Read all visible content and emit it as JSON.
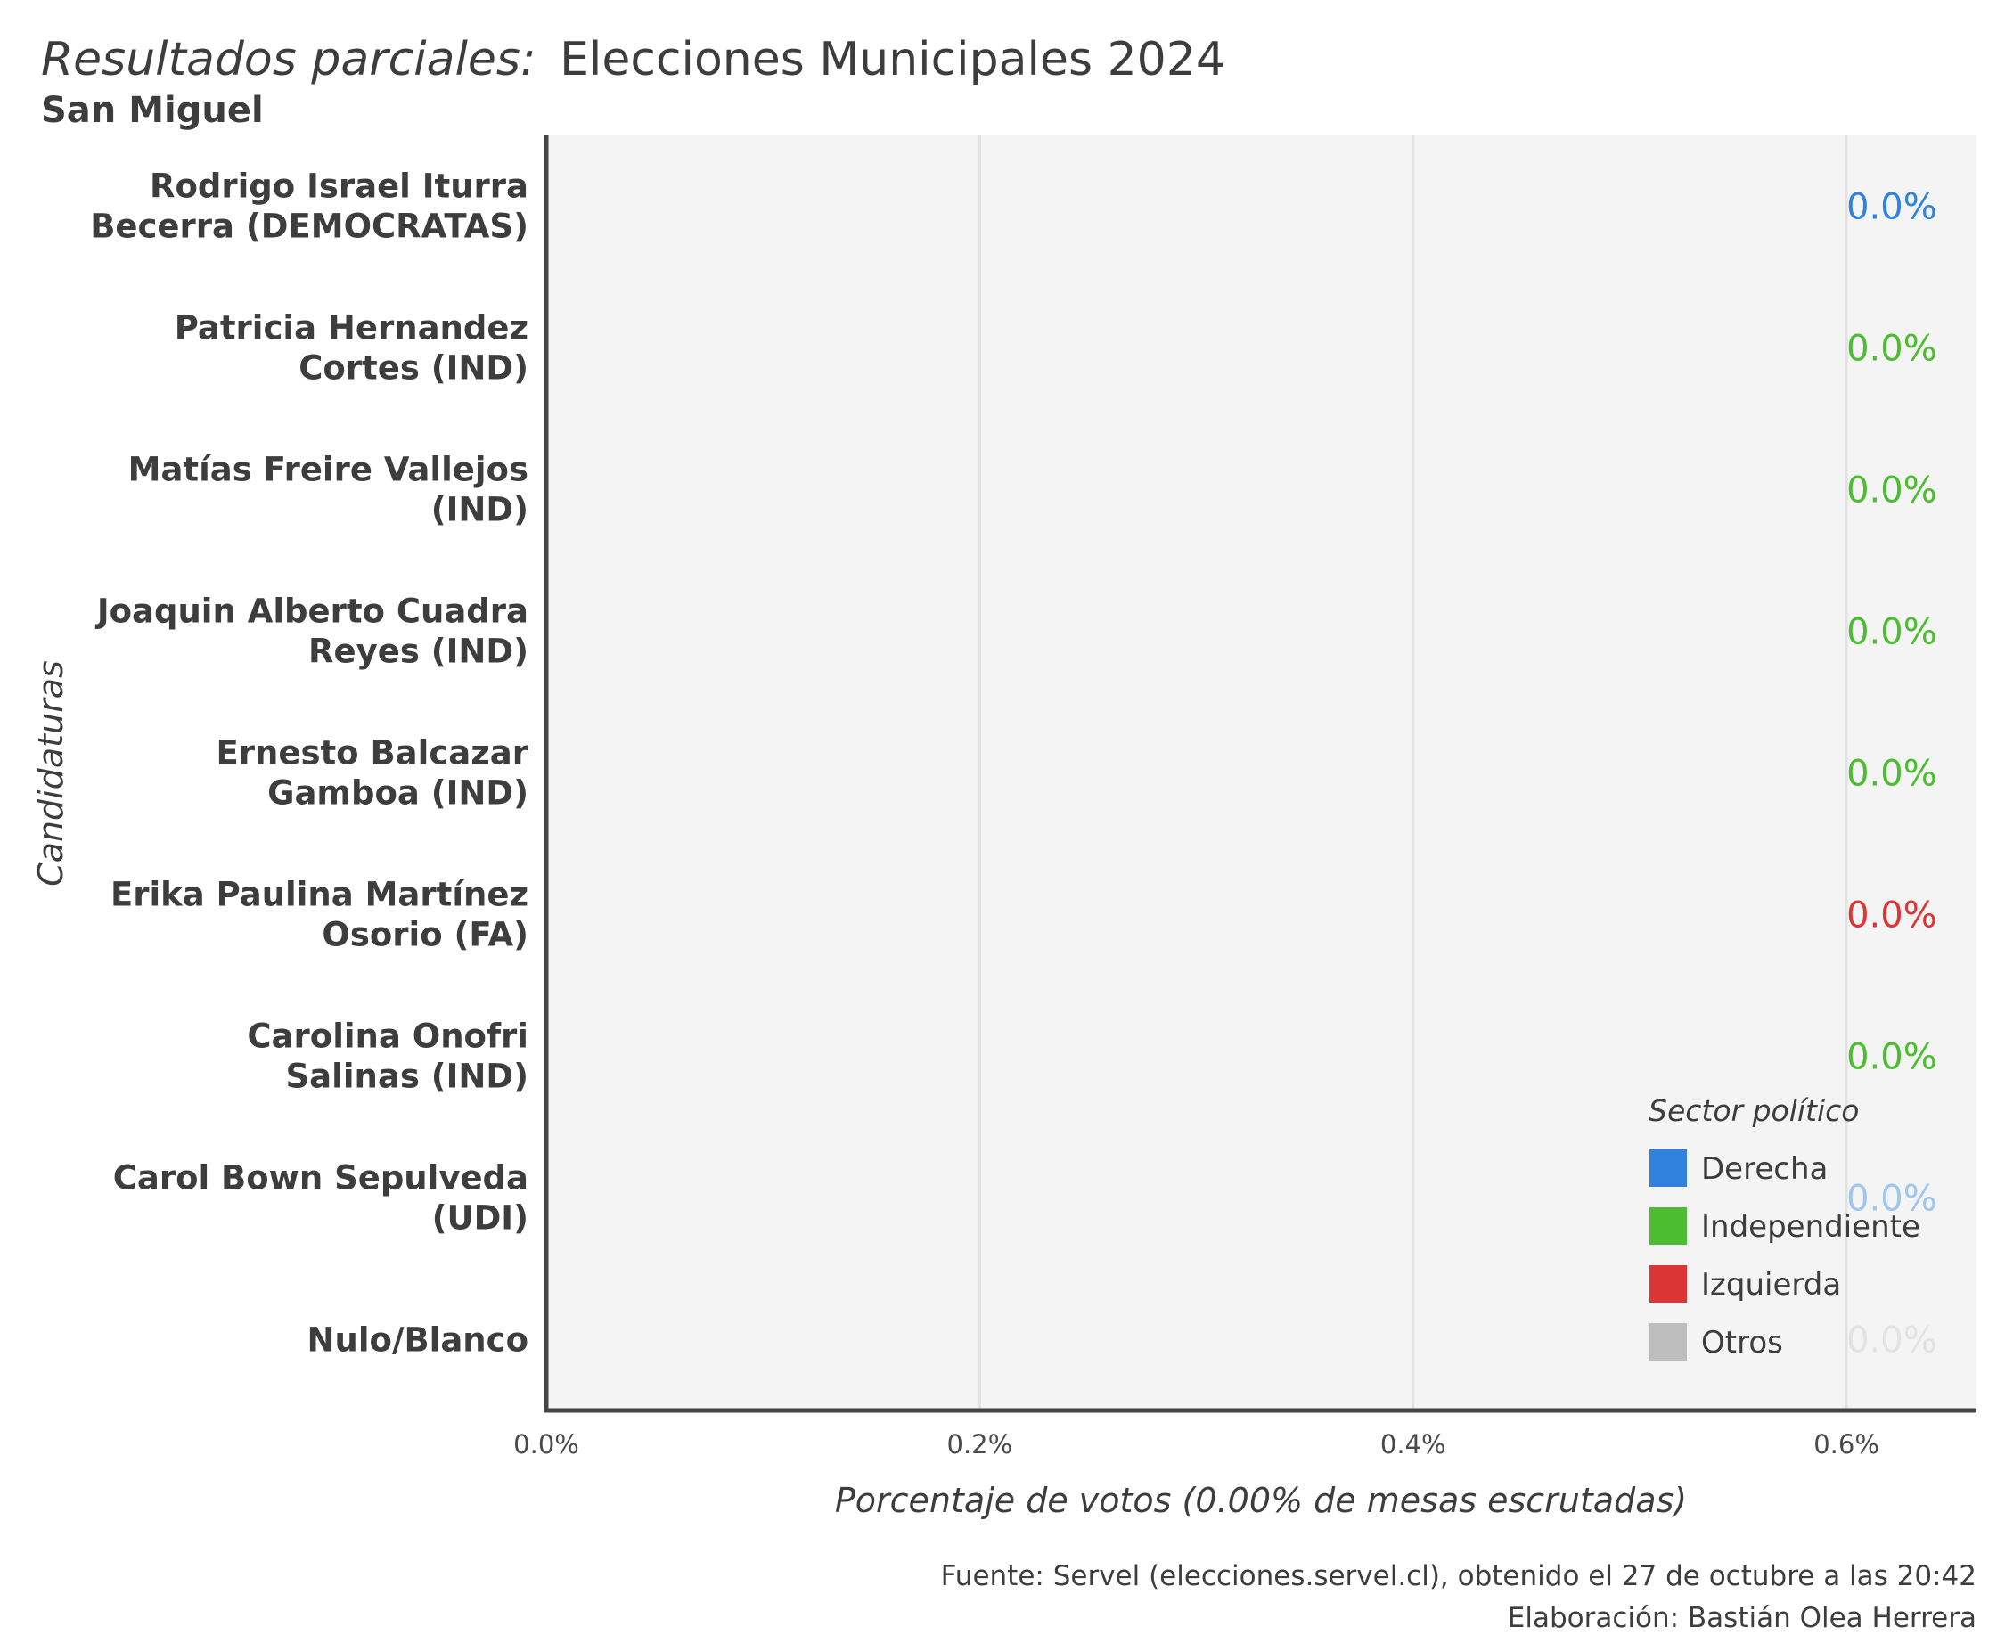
{
  "colors": {
    "Derecha": "#3181de",
    "Independiente": "#4cbd30",
    "Izquierda": "#db3535",
    "Otros": "#bdbdbd",
    "Derecha_light": "#9ec6ef",
    "Otros_light": "#e3e3e3",
    "panel": "#f4f4f4",
    "grid": "#e2e2e2",
    "axis": "#444444"
  },
  "chart_data": {
    "type": "bar",
    "orientation": "horizontal",
    "title_lead": "Resultados parciales:",
    "title_main": "Elecciones Municipales 2024",
    "subtitle": "San Miguel",
    "xlabel": "Porcentaje de votos (0.00% de mesas escrutadas)",
    "ylabel": "Candidaturas",
    "xlim": [
      0,
      0.66
    ],
    "x_ticks": [
      0,
      0.2,
      0.4,
      0.6
    ],
    "x_tick_labels": [
      "0.0%",
      "0.2%",
      "0.4%",
      "0.6%"
    ],
    "grid": true,
    "categories": [
      {
        "line1": "Rodrigo Israel Iturra",
        "line2": "Becerra (DEMOCRATAS)",
        "value": 0,
        "label": "0.0%",
        "sector": "Derecha",
        "faded": false
      },
      {
        "line1": "Patricia Hernandez",
        "line2": "Cortes (IND)",
        "value": 0,
        "label": "0.0%",
        "sector": "Independiente",
        "faded": false
      },
      {
        "line1": "Matías Freire Vallejos",
        "line2": "(IND)",
        "value": 0,
        "label": "0.0%",
        "sector": "Independiente",
        "faded": false
      },
      {
        "line1": "Joaquin Alberto Cuadra",
        "line2": "Reyes (IND)",
        "value": 0,
        "label": "0.0%",
        "sector": "Independiente",
        "faded": false
      },
      {
        "line1": "Ernesto Balcazar",
        "line2": "Gamboa (IND)",
        "value": 0,
        "label": "0.0%",
        "sector": "Independiente",
        "faded": false
      },
      {
        "line1": "Erika Paulina Martínez",
        "line2": "Osorio (FA)",
        "value": 0,
        "label": "0.0%",
        "sector": "Izquierda",
        "faded": false
      },
      {
        "line1": "Carolina Onofri",
        "line2": "Salinas (IND)",
        "value": 0,
        "label": "0.0%",
        "sector": "Independiente",
        "faded": false
      },
      {
        "line1": "Carol Bown Sepulveda",
        "line2": "(UDI)",
        "value": 0,
        "label": "0.0%",
        "sector": "Derecha",
        "faded": true
      },
      {
        "line1": "Nulo/Blanco",
        "line2": "",
        "value": 0,
        "label": "0.0%",
        "sector": "Otros",
        "faded": true
      }
    ],
    "legend": {
      "title": "Sector político",
      "placement": "bottom-right",
      "items": [
        "Derecha",
        "Independiente",
        "Izquierda",
        "Otros"
      ]
    },
    "caption": [
      "Fuente: Servel (elecciones.servel.cl), obtenido el 27 de octubre a las 20:42",
      "Elaboración: Bastián Olea Herrera"
    ]
  }
}
